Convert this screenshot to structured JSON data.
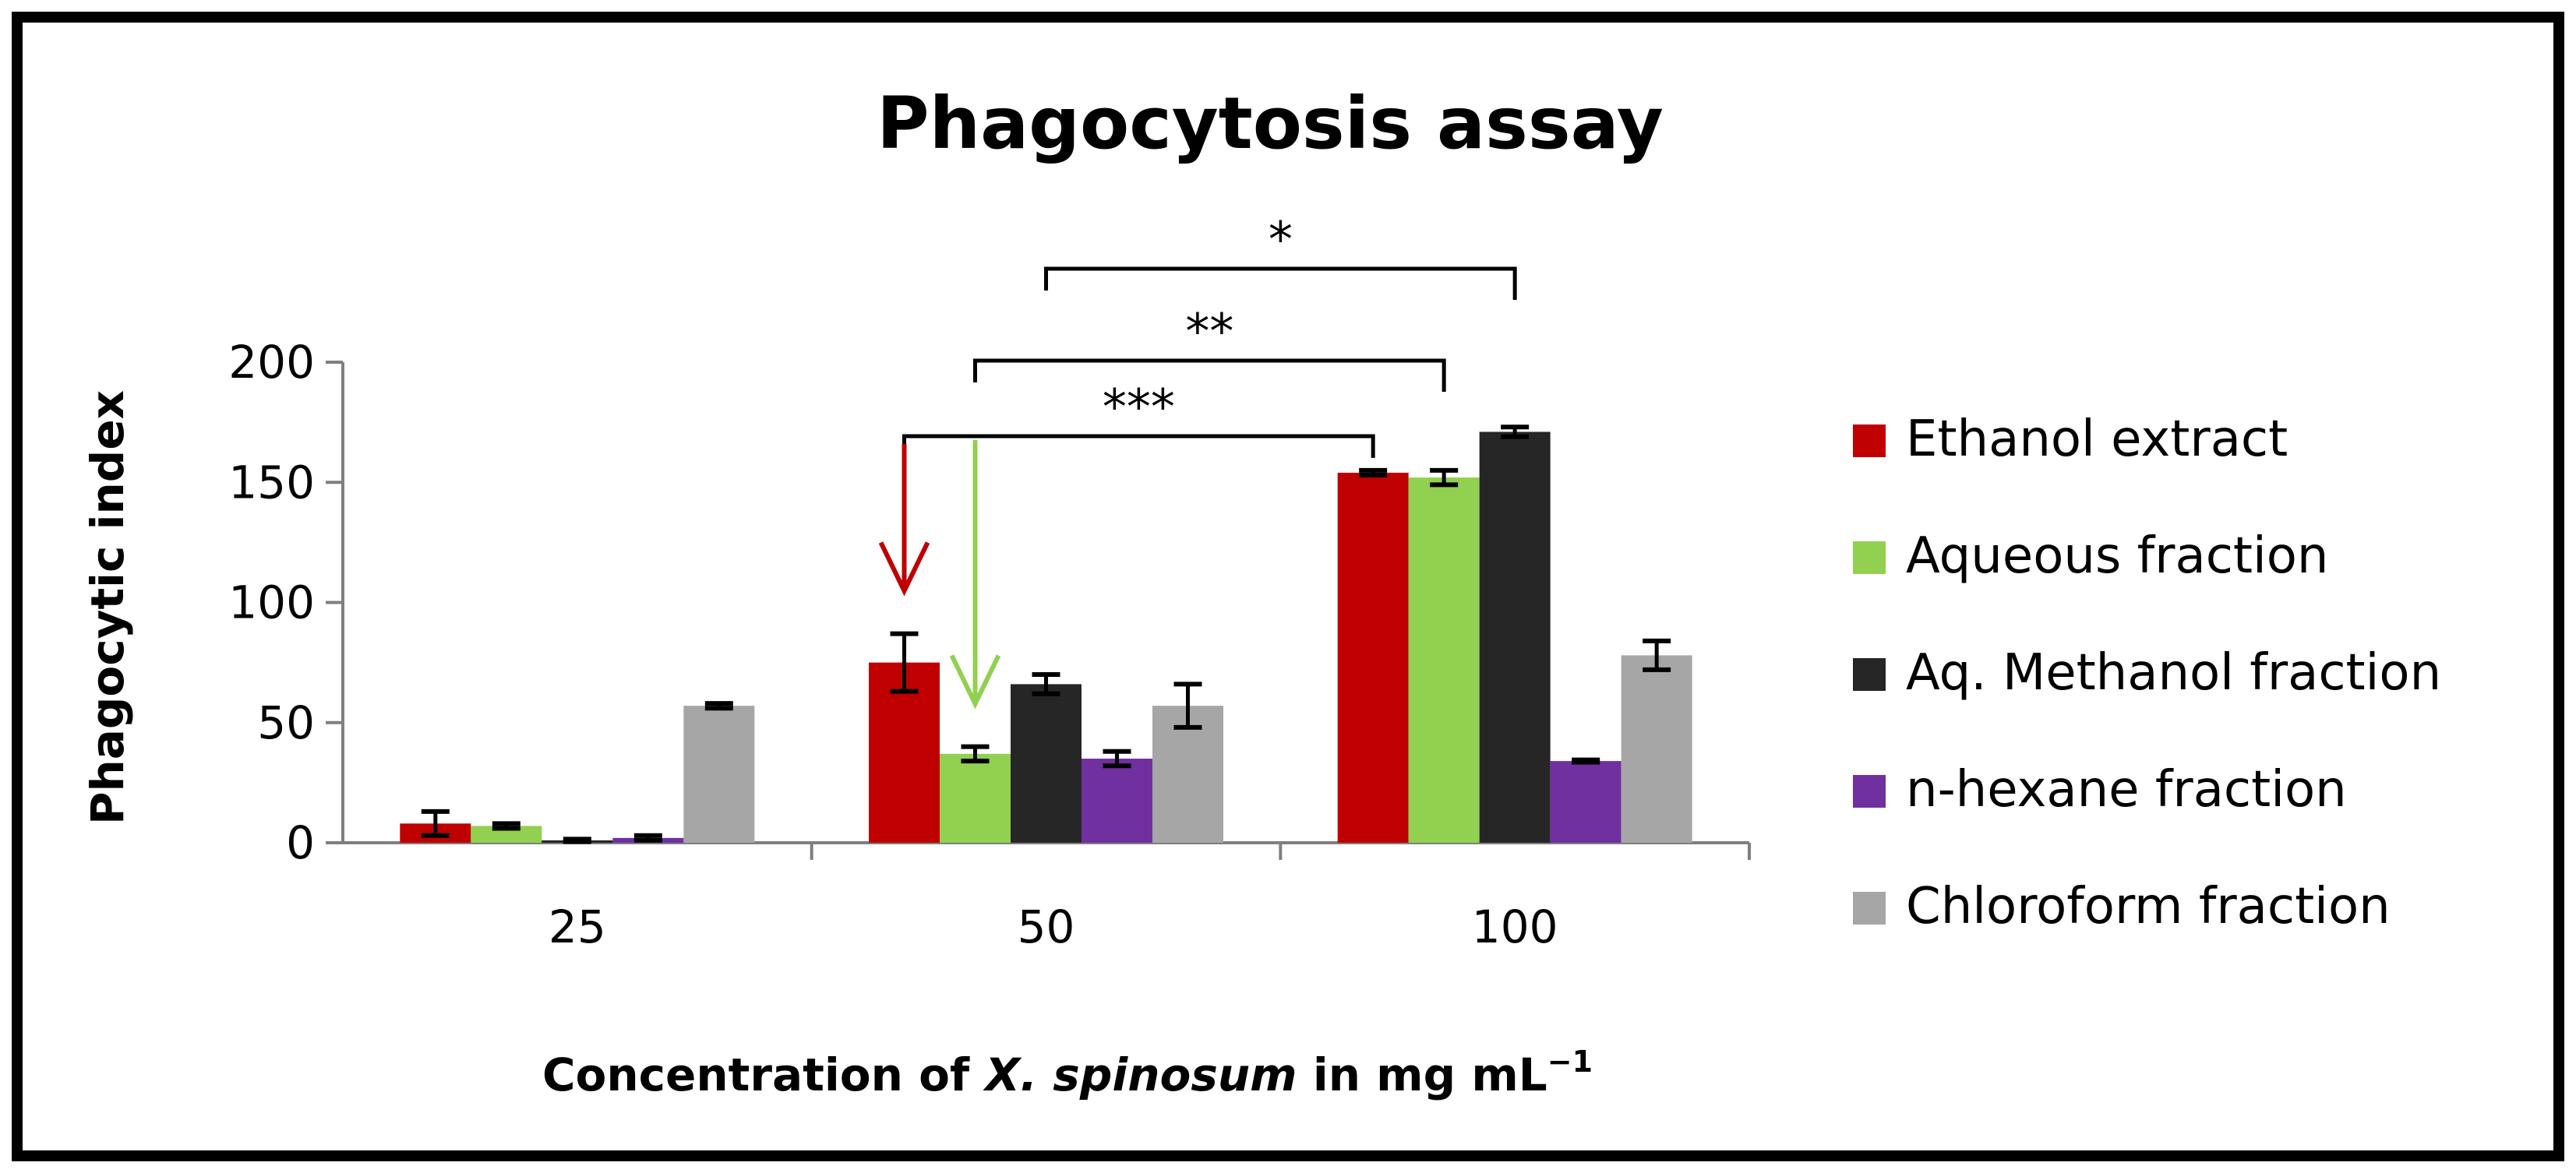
{
  "chart_data": {
    "type": "bar",
    "title": "Phagocytosis assay",
    "ylabel": "Phagocytic index",
    "xlabel": {
      "prefix": "Concentration of ",
      "species": "X. spinosum",
      "suffix": " in mg mL",
      "superscript": "−1"
    },
    "ylim": [
      0,
      200
    ],
    "yticks": [
      "0",
      "50",
      "100",
      "150",
      "200"
    ],
    "categories": [
      "25",
      "50",
      "100"
    ],
    "series": [
      {
        "name": "Ethanol extract",
        "color": "#c00000",
        "values": [
          8,
          75,
          154
        ],
        "errors": [
          5,
          12,
          1
        ]
      },
      {
        "name": "Aqueous fraction",
        "color": "#92d050",
        "values": [
          7,
          37,
          152
        ],
        "errors": [
          1,
          3,
          3
        ]
      },
      {
        "name": "Aq. Methanol fraction",
        "color": "#262626",
        "values": [
          1,
          66,
          171
        ],
        "errors": [
          0.5,
          4,
          2
        ]
      },
      {
        "name": "n-hexane fraction",
        "color": "#7030a0",
        "values": [
          2,
          35,
          34
        ],
        "errors": [
          1,
          3,
          0.5
        ]
      },
      {
        "name": "Chloroform fraction",
        "color": "#a6a6a6",
        "values": [
          57,
          57,
          78
        ],
        "errors": [
          1,
          9,
          6
        ]
      }
    ],
    "significance": [
      {
        "label": "***",
        "from": {
          "category": 1,
          "series": 0
        },
        "to": {
          "category": 2,
          "series": 0
        }
      },
      {
        "label": "**",
        "from": {
          "category": 1,
          "series": 1
        },
        "to": {
          "category": 2,
          "series": 1
        }
      },
      {
        "label": "*",
        "from": {
          "category": 1,
          "series": 2
        },
        "to": {
          "category": 2,
          "series": 2
        }
      }
    ],
    "arrows": [
      {
        "color": "#c00000",
        "category": 1,
        "series": 0
      },
      {
        "color": "#92d050",
        "category": 1,
        "series": 1
      }
    ],
    "legend": "right"
  }
}
